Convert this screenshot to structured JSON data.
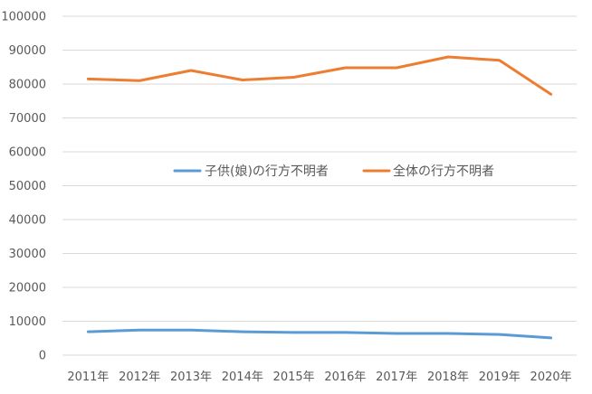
{
  "chart_data": {
    "type": "line",
    "title": "",
    "xlabel": "",
    "ylabel": "",
    "categories": [
      "2011年",
      "2012年",
      "2013年",
      "2014年",
      "2015年",
      "2016年",
      "2017年",
      "2018年",
      "2019年",
      "2020年"
    ],
    "ylim": [
      0,
      100000
    ],
    "yticks": [
      0,
      10000,
      20000,
      30000,
      40000,
      50000,
      60000,
      70000,
      80000,
      90000,
      100000
    ],
    "grid": true,
    "legend_position": "center",
    "series": [
      {
        "name": "子供(娘)の行方不明者",
        "color": "#5b9bd5",
        "values": [
          6900,
          7400,
          7400,
          6900,
          6700,
          6700,
          6400,
          6400,
          6100,
          5100
        ]
      },
      {
        "name": "全体の行方不明者",
        "color": "#ed7d31",
        "values": [
          81500,
          81000,
          84000,
          81200,
          82000,
          84800,
          84800,
          88000,
          87000,
          77000
        ]
      }
    ]
  }
}
